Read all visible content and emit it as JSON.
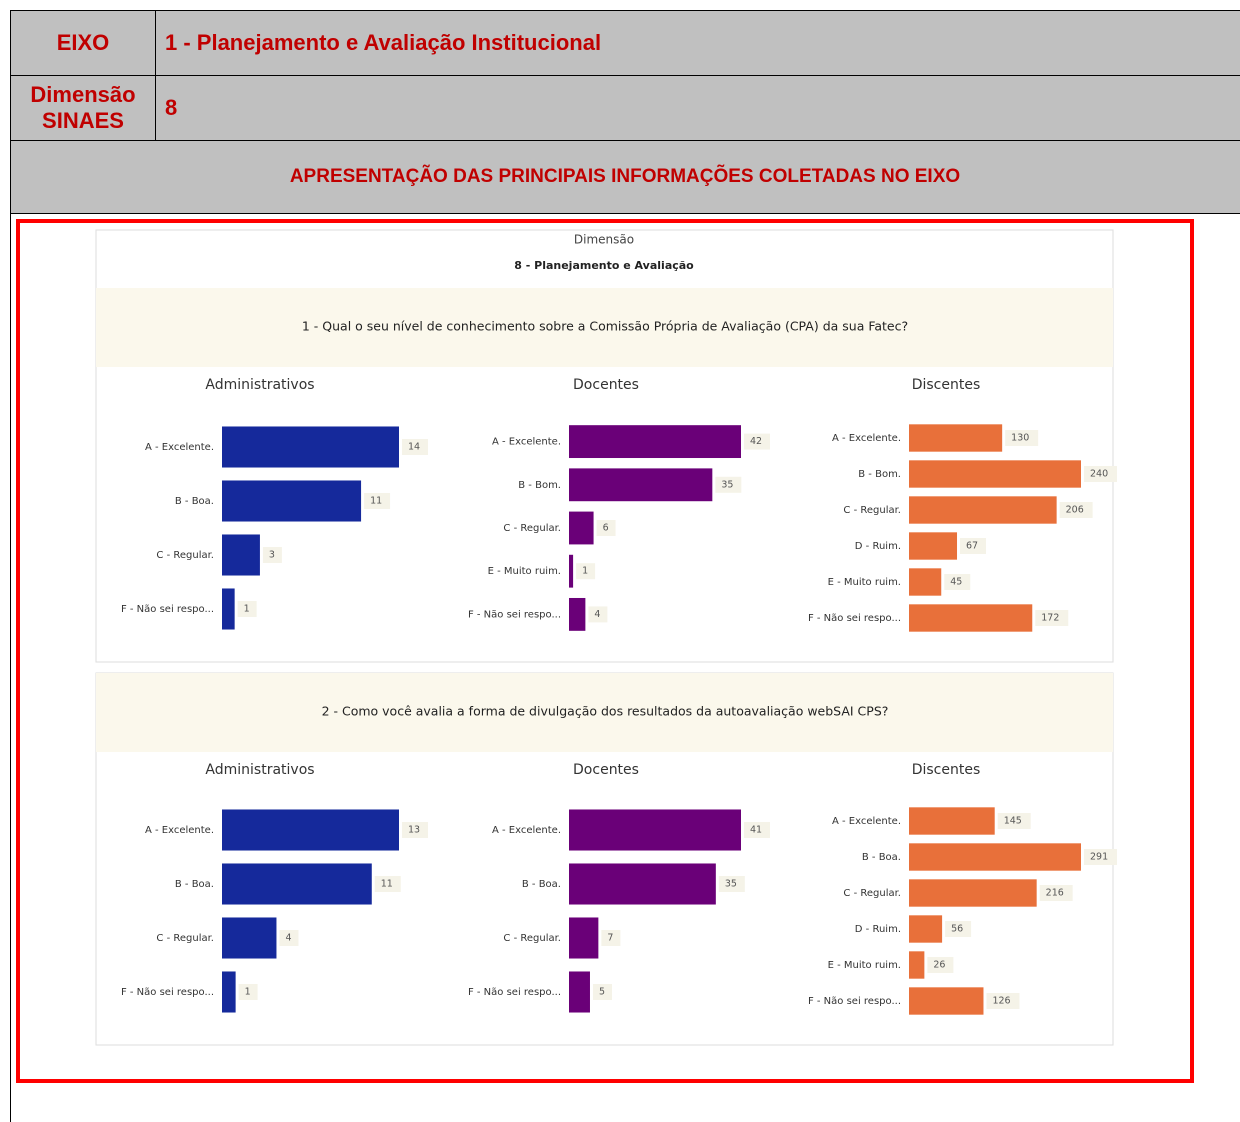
{
  "header": {
    "eixo_label": "EIXO",
    "eixo_value": "1 - Planejamento e Avaliação Institucional",
    "dimensao_label": "Dimensão SINAES",
    "dimensao_value": "8",
    "section_title": "APRESENTAÇÃO DAS PRINCIPAIS INFORMAÇÕES COLETADAS NO EIXO"
  },
  "report": {
    "subtitle": "Dimensão",
    "title": "8 - Planejamento e Avaliação",
    "questions": [
      "1 - Qual o seu nível de conhecimento sobre a Comissão Própria de Avaliação (CPA) da sua Fatec?",
      "2 - Como você avalia a forma de divulgação dos resultados da autoavaliação webSAI CPS?"
    ]
  },
  "chart_data": [
    {
      "type": "bar",
      "title": "Administrativos",
      "color": "#15299b",
      "categories": [
        "A - Excelente.",
        "B - Boa.",
        "C - Regular.",
        "F - Não sei respo..."
      ],
      "values": [
        14,
        11,
        3,
        1
      ]
    },
    {
      "type": "bar",
      "title": "Docentes",
      "color": "#6a0078",
      "categories": [
        "A - Excelente.",
        "B - Bom.",
        "C - Regular.",
        "E - Muito ruim.",
        "F - Não sei respo..."
      ],
      "values": [
        42,
        35,
        6,
        1,
        4
      ]
    },
    {
      "type": "bar",
      "title": "Discentes",
      "color": "#e8703a",
      "categories": [
        "A - Excelente.",
        "B - Bom.",
        "C - Regular.",
        "D - Ruim.",
        "E - Muito ruim.",
        "F - Não sei respo..."
      ],
      "values": [
        130,
        240,
        206,
        67,
        45,
        172
      ]
    },
    {
      "type": "bar",
      "title": "Administrativos",
      "color": "#15299b",
      "categories": [
        "A - Excelente.",
        "B - Boa.",
        "C - Regular.",
        "F - Não sei respo..."
      ],
      "values": [
        13,
        11,
        4,
        1
      ]
    },
    {
      "type": "bar",
      "title": "Docentes",
      "color": "#6a0078",
      "categories": [
        "A - Excelente.",
        "B - Boa.",
        "C - Regular.",
        "F - Não sei respo..."
      ],
      "values": [
        41,
        35,
        7,
        5
      ]
    },
    {
      "type": "bar",
      "title": "Discentes",
      "color": "#e8703a",
      "categories": [
        "A - Excelente.",
        "B - Boa.",
        "C - Regular.",
        "D - Ruim.",
        "E - Muito ruim.",
        "F - Não sei respo..."
      ],
      "values": [
        145,
        291,
        216,
        56,
        26,
        126
      ]
    }
  ]
}
